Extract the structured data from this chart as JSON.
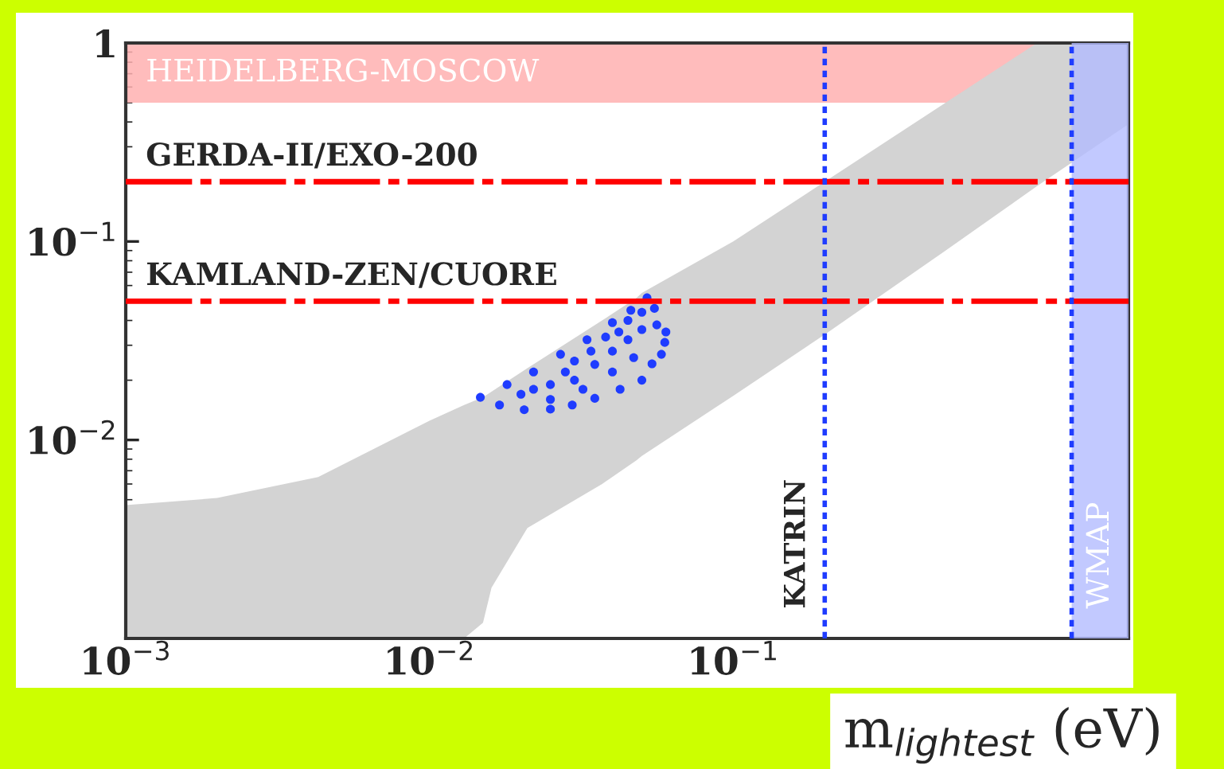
{
  "chart_data": {
    "type": "scatter",
    "xlabel": "m$_{lightest}$ (eV)",
    "log": "xy",
    "grid": false,
    "legend": false,
    "xlim": [
      0.001,
      2
    ],
    "ylim": [
      0.001,
      1
    ],
    "xticks": [
      {
        "value": 0.001,
        "label": "10$^{−3}$"
      },
      {
        "value": 0.01,
        "label": "10$^{−2}$"
      },
      {
        "value": 0.1,
        "label": "10$^{−1}$"
      },
      {
        "value": 1,
        "label": null
      }
    ],
    "yticks": [
      {
        "value": 0.001,
        "label": null
      },
      {
        "value": 0.01,
        "label": "10$^{−2}$"
      },
      {
        "value": 0.1,
        "label": "10$^{−1}$"
      },
      1
    ],
    "series": [
      {
        "type": "area",
        "color": "#d3d3d3",
        "x": [
          0.001,
          0.002,
          0.0043,
          0.01,
          0.013,
          0.015,
          0.016,
          0.021,
          0.037,
          0.048,
          0.05,
          0.1,
          0.2,
          0.5,
          1,
          2
        ],
        "values": [
          0.0047,
          0.0051,
          0.0065,
          0.0125,
          0.015,
          0.0164,
          0.0175,
          0.023,
          0.04,
          0.052,
          0.055,
          0.1,
          0.2,
          0.5,
          1,
          1
        ]
      },
      {
        "type": "area",
        "color": "#ffffff",
        "x": [
          0.013,
          0.015,
          0.016,
          0.021,
          0.037,
          0.048,
          0.05,
          0.1,
          0.2,
          0.5,
          1,
          2
        ],
        "values": [
          0.001,
          0.0012,
          0.0018,
          0.0036,
          0.006,
          0.0079,
          0.0083,
          0.0167,
          0.034,
          0.09,
          0.19,
          0.39
        ]
      },
      {
        "color": "#1f3cff",
        "marker": "circle",
        "x": [
          0.0147,
          0.018,
          0.022,
          0.027,
          0.033,
          0.04,
          0.046,
          0.052,
          0.017,
          0.0205,
          0.025,
          0.0295,
          0.035,
          0.0424,
          0.05,
          0.054,
          0.0595,
          0.056,
          0.055,
          0.058,
          0.06,
          0.02,
          0.025,
          0.03,
          0.035,
          0.04,
          0.045,
          0.05,
          0.03,
          0.038,
          0.045,
          0.025,
          0.032,
          0.04,
          0.047,
          0.05,
          0.042,
          0.022,
          0.028,
          0.034
        ],
        "values": [
          0.0164,
          0.019,
          0.022,
          0.027,
          0.032,
          0.039,
          0.045,
          0.052,
          0.015,
          0.0142,
          0.0143,
          0.015,
          0.0162,
          0.018,
          0.02,
          0.0242,
          0.031,
          0.038,
          0.046,
          0.027,
          0.035,
          0.017,
          0.019,
          0.02,
          0.024,
          0.028,
          0.032,
          0.036,
          0.025,
          0.033,
          0.04,
          0.016,
          0.018,
          0.022,
          0.026,
          0.044,
          0.035,
          0.018,
          0.022,
          0.028
        ]
      }
    ],
    "bands": [
      {
        "axis": "y",
        "from": 0.5,
        "to": 1,
        "label": "HEIDELBERG-MOSCOW",
        "color": "#ffb0b0"
      },
      {
        "axis": "x",
        "from": 1.3,
        "to": 2,
        "label": "WMAP",
        "color": "#b3bcff"
      }
    ],
    "ref_lines": [
      {
        "axis": "y",
        "value": 0.2,
        "label": "GERDA-II/EXO-200",
        "color": "#ff0000",
        "line_style": "dashed"
      },
      {
        "axis": "y",
        "value": 0.05,
        "label": "KAMLAND-ZEN/CUORE",
        "color": "#ff0000",
        "line_style": "dashed"
      },
      {
        "axis": "x",
        "value": 0.2,
        "label": "KATRIN",
        "color": "#1f3cff",
        "line_style": "dotted"
      },
      {
        "axis": "x",
        "value": 1.3,
        "label": null,
        "color": "#1f3cff",
        "line_style": "dotted"
      }
    ]
  }
}
